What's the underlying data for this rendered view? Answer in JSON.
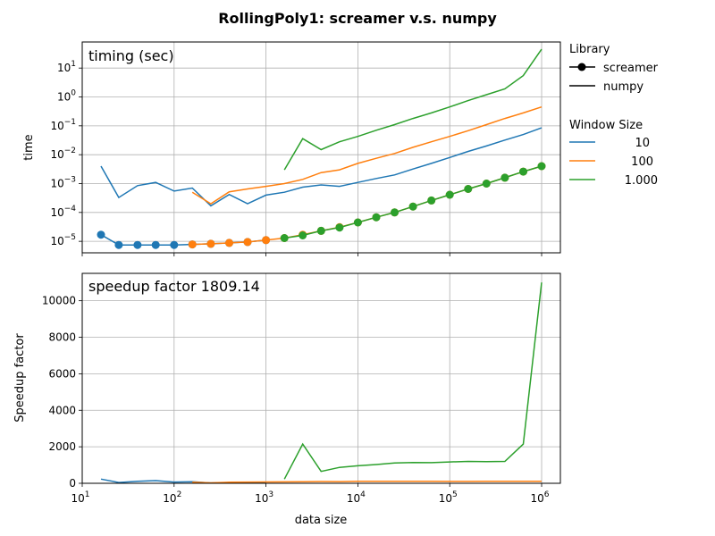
{
  "title": "RollingPoly1:  screamer v.s. numpy",
  "legend": {
    "library_title": "Library",
    "library_items": [
      "screamer",
      "numpy"
    ],
    "window_title": "Window Size",
    "window_items": [
      "10",
      "100",
      "1.000"
    ]
  },
  "colors": {
    "w10": "#1f77b4",
    "w100": "#ff7f0e",
    "w1000": "#2ca02c",
    "grid": "#b0b0b0"
  },
  "chart_data": [
    {
      "type": "line",
      "panel_text": "timing (sec)",
      "ylabel": "time",
      "xscale": "log",
      "yscale": "log",
      "xlim": [
        10,
        1600000
      ],
      "ylim": [
        4e-06,
        80
      ],
      "grid": true,
      "legend_position": "outside-right",
      "x_ticks": [
        "10^1",
        "10^2",
        "10^3",
        "10^4",
        "10^5",
        "10^6"
      ],
      "y_ticks": [
        "10^-5",
        "10^-4",
        "10^-3",
        "10^-2",
        "10^-1",
        "10^0",
        "10^1"
      ],
      "series": [
        {
          "name": "10",
          "library": "numpy",
          "color": "#1f77b4",
          "x": [
            16,
            25,
            40,
            63,
            100,
            158,
            251,
            398,
            631,
            1000,
            1585,
            2512,
            3981,
            6310,
            10000,
            15849,
            25119,
            39811,
            63096,
            100000,
            158489,
            251189,
            398107,
            630957,
            1000000
          ],
          "y": [
            0.004,
            0.00033,
            0.00085,
            0.0011,
            0.00055,
            0.0007,
            0.00017,
            0.00042,
            0.0002,
            0.0004,
            0.0005,
            0.00075,
            0.0009,
            0.0008,
            0.0011,
            0.0015,
            0.002,
            0.0032,
            0.005,
            0.008,
            0.013,
            0.02,
            0.032,
            0.05,
            0.085
          ]
        },
        {
          "name": "10",
          "library": "screamer",
          "color": "#1f77b4",
          "x": [
            16,
            25,
            40,
            63,
            100,
            158,
            251,
            398,
            631,
            1000
          ],
          "y": [
            1.7e-05,
            7.5e-06,
            7.5e-06,
            7.5e-06,
            7.5e-06,
            7.8e-06,
            8.2e-06,
            8.8e-06,
            9.5e-06,
            1.1e-05
          ]
        },
        {
          "name": "100",
          "library": "numpy",
          "color": "#ff7f0e",
          "x": [
            158,
            251,
            398,
            631,
            1000,
            1585,
            2512,
            3981,
            6310,
            10000,
            15849,
            25119,
            39811,
            63096,
            100000,
            158489,
            251189,
            398107,
            630957,
            1000000
          ],
          "y": [
            0.0005,
            0.0002,
            0.00052,
            0.00065,
            0.0008,
            0.001,
            0.0014,
            0.0024,
            0.003,
            0.005,
            0.0075,
            0.011,
            0.018,
            0.028,
            0.043,
            0.068,
            0.11,
            0.18,
            0.28,
            0.45
          ]
        },
        {
          "name": "100",
          "library": "screamer",
          "color": "#ff7f0e",
          "x": [
            158,
            251,
            398,
            631,
            1000,
            1585,
            2512,
            3981,
            6310,
            10000,
            15849,
            25119,
            39811,
            63096,
            100000,
            158489,
            251189,
            398107,
            630957,
            1000000
          ],
          "y": [
            7.8e-06,
            8.2e-06,
            8.8e-06,
            9.5e-06,
            1.1e-05,
            1.3e-05,
            1.7e-05,
            2.3e-05,
            3.1e-05,
            4.5e-05,
            6.8e-05,
            0.0001,
            0.00016,
            0.00026,
            0.00041,
            0.00065,
            0.001,
            0.0016,
            0.0026,
            0.004
          ]
        },
        {
          "name": "1.000",
          "library": "numpy",
          "color": "#2ca02c",
          "x": [
            1585,
            2512,
            3981,
            6310,
            10000,
            15849,
            25119,
            39811,
            63096,
            100000,
            158489,
            251189,
            398107,
            630957,
            1000000
          ],
          "y": [
            0.003,
            0.036,
            0.015,
            0.028,
            0.043,
            0.07,
            0.11,
            0.18,
            0.28,
            0.45,
            0.75,
            1.2,
            1.9,
            5.5,
            45
          ]
        },
        {
          "name": "1.000",
          "library": "screamer",
          "color": "#2ca02c",
          "x": [
            1585,
            2512,
            3981,
            6310,
            10000,
            15849,
            25119,
            39811,
            63096,
            100000,
            158489,
            251189,
            398107,
            630957,
            1000000
          ],
          "y": [
            1.3e-05,
            1.6e-05,
            2.3e-05,
            3e-05,
            4.5e-05,
            6.8e-05,
            0.0001,
            0.00016,
            0.00026,
            0.00041,
            0.00065,
            0.001,
            0.0016,
            0.0026,
            0.004
          ]
        }
      ]
    },
    {
      "type": "line",
      "panel_text": "speedup factor  1809.14",
      "xlabel": "data size",
      "ylabel": "Speedup factor",
      "xscale": "log",
      "yscale": "linear",
      "xlim": [
        10,
        1600000
      ],
      "ylim": [
        0,
        11500
      ],
      "grid": true,
      "x_ticks": [
        "10^1",
        "10^2",
        "10^3",
        "10^4",
        "10^5",
        "10^6"
      ],
      "y_ticks": [
        "0",
        "2000",
        "4000",
        "6000",
        "8000",
        "10000"
      ],
      "series": [
        {
          "name": "10",
          "color": "#1f77b4",
          "x": [
            16,
            25,
            40,
            63,
            100,
            158,
            251,
            398,
            631,
            1000
          ],
          "y": [
            230,
            45,
            110,
            145,
            70,
            90,
            20,
            45,
            20,
            35
          ]
        },
        {
          "name": "100",
          "color": "#ff7f0e",
          "x": [
            158,
            251,
            398,
            631,
            1000,
            1585,
            2512,
            3981,
            6310,
            10000,
            15849,
            25119,
            39811,
            63096,
            100000,
            158489,
            251189,
            398107,
            630957,
            1000000
          ],
          "y": [
            60,
            25,
            60,
            70,
            75,
            78,
            82,
            100,
            95,
            110,
            110,
            110,
            112,
            108,
            105,
            105,
            110,
            112,
            108,
            112
          ]
        },
        {
          "name": "1.000",
          "color": "#2ca02c",
          "x": [
            1585,
            2512,
            3981,
            6310,
            10000,
            15849,
            25119,
            39811,
            63096,
            100000,
            158489,
            251189,
            398107,
            630957,
            1000000
          ],
          "y": [
            230,
            2150,
            650,
            870,
            960,
            1030,
            1110,
            1140,
            1130,
            1170,
            1200,
            1190,
            1200,
            2150,
            11000
          ]
        }
      ]
    }
  ]
}
